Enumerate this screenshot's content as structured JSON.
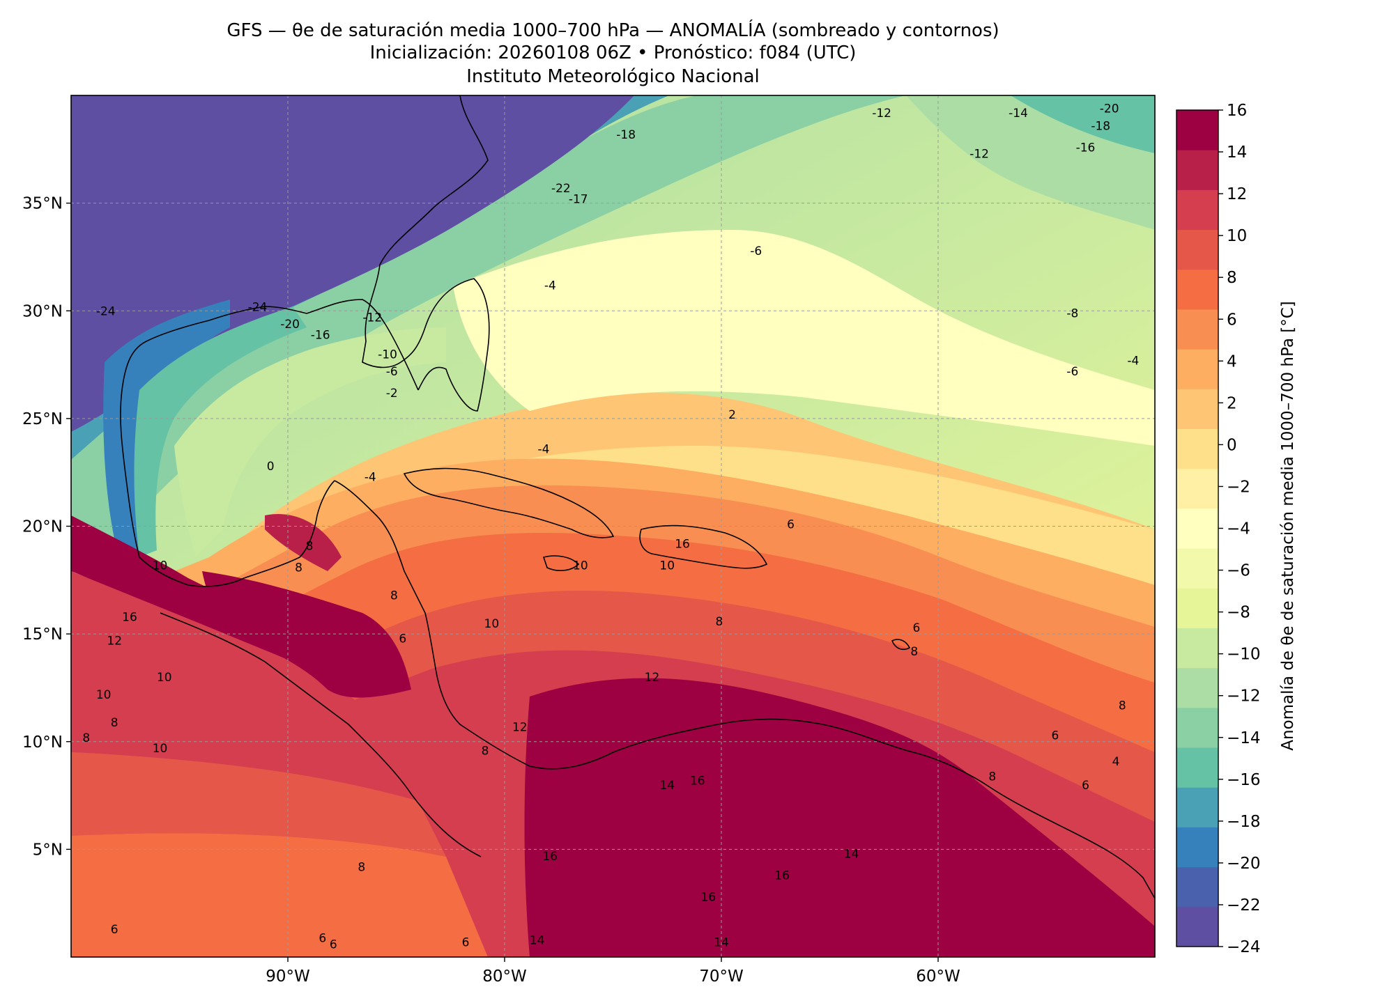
{
  "title": {
    "line1": "GFS — θe de saturación media 1000–700 hPa — ANOMALÍA (sombreado y contornos)",
    "line2": "Inicialización: 20260108 06Z   •   Pronóstico: f084 (UTC)",
    "line3": "Instituto Meteorológico Nacional"
  },
  "map": {
    "lon_range": [
      -100,
      -50
    ],
    "lat_range": [
      0,
      40
    ],
    "lon_ticks": [
      {
        "value": -90,
        "label": "90°W"
      },
      {
        "value": -80,
        "label": "80°W"
      },
      {
        "value": -70,
        "label": "70°W"
      },
      {
        "value": -60,
        "label": "60°W"
      }
    ],
    "lat_ticks": [
      {
        "value": 35,
        "label": "35°N"
      },
      {
        "value": 30,
        "label": "30°N"
      },
      {
        "value": 25,
        "label": "25°N"
      },
      {
        "value": 20,
        "label": "20°N"
      },
      {
        "value": 15,
        "label": "15°N"
      },
      {
        "value": 10,
        "label": "10°N"
      },
      {
        "value": 5,
        "label": "5°N"
      }
    ],
    "gridlines": true
  },
  "colorbar": {
    "label": "Anomalía de θe de saturación media 1000–700 hPa [°C]",
    "ticks": [
      "16",
      "14",
      "12",
      "10",
      "8",
      "6",
      "4",
      "2",
      "0",
      "−2",
      "−4",
      "−6",
      "−8",
      "−10",
      "−12",
      "−14",
      "−16",
      "−18",
      "−20",
      "−22",
      "−24"
    ],
    "range": [
      -24,
      16
    ],
    "colors": [
      "#5e4fa2",
      "#4a62ad",
      "#3680bb",
      "#4aa0b4",
      "#66c2a5",
      "#8ad0a4",
      "#abdda4",
      "#c7e9a0",
      "#e6f598",
      "#f3f9aa",
      "#ffffbf",
      "#fff0a6",
      "#fee08b",
      "#fdc574",
      "#fdae61",
      "#f98e52",
      "#f46d43",
      "#e55749",
      "#d53e4f",
      "#b8204a",
      "#9e0142"
    ]
  },
  "contour_labels": [
    {
      "text": "-12",
      "lon": -62.6,
      "lat": 39.0
    },
    {
      "text": "-14",
      "lon": -56.3,
      "lat": 39.0
    },
    {
      "text": "-20",
      "lon": -52.1,
      "lat": 39.2
    },
    {
      "text": "-18",
      "lon": -52.5,
      "lat": 38.4
    },
    {
      "text": "-16",
      "lon": -53.2,
      "lat": 37.4
    },
    {
      "text": "-12",
      "lon": -58.1,
      "lat": 37.1
    },
    {
      "text": "-18",
      "lon": -74.4,
      "lat": 38.0
    },
    {
      "text": "-22",
      "lon": -77.4,
      "lat": 35.5
    },
    {
      "text": "-17",
      "lon": -76.6,
      "lat": 35.0
    },
    {
      "text": "-6",
      "lon": -68.4,
      "lat": 32.6
    },
    {
      "text": "-4",
      "lon": -77.9,
      "lat": 31.0
    },
    {
      "text": "-8",
      "lon": -53.8,
      "lat": 29.7
    },
    {
      "text": "-4",
      "lon": -51.0,
      "lat": 27.5
    },
    {
      "text": "-6",
      "lon": -53.8,
      "lat": 27.0
    },
    {
      "text": "-24",
      "lon": -98.4,
      "lat": 29.8
    },
    {
      "text": "-24",
      "lon": -91.4,
      "lat": 30.0
    },
    {
      "text": "-20",
      "lon": -89.9,
      "lat": 29.2
    },
    {
      "text": "-16",
      "lon": -88.5,
      "lat": 28.7
    },
    {
      "text": "-12",
      "lon": -86.1,
      "lat": 29.5
    },
    {
      "text": "-10",
      "lon": -85.4,
      "lat": 27.8
    },
    {
      "text": "-6",
      "lon": -85.2,
      "lat": 27.0
    },
    {
      "text": "-2",
      "lon": -85.2,
      "lat": 26.0
    },
    {
      "text": "2",
      "lon": -69.5,
      "lat": 25.0
    },
    {
      "text": "0",
      "lon": -90.8,
      "lat": 22.6
    },
    {
      "text": "-4",
      "lon": -78.2,
      "lat": 23.4
    },
    {
      "text": "-4",
      "lon": -86.2,
      "lat": 22.1
    },
    {
      "text": "6",
      "lon": -66.8,
      "lat": 19.9
    },
    {
      "text": "10",
      "lon": -95.9,
      "lat": 18.0
    },
    {
      "text": "8",
      "lon": -89.5,
      "lat": 17.9
    },
    {
      "text": "8",
      "lon": -89.0,
      "lat": 18.9
    },
    {
      "text": "16",
      "lon": -71.8,
      "lat": 19.0
    },
    {
      "text": "10",
      "lon": -72.5,
      "lat": 18.0
    },
    {
      "text": "10",
      "lon": -76.5,
      "lat": 18.0
    },
    {
      "text": "16",
      "lon": -97.3,
      "lat": 15.6
    },
    {
      "text": "12",
      "lon": -98.0,
      "lat": 14.5
    },
    {
      "text": "10",
      "lon": -98.5,
      "lat": 12.0
    },
    {
      "text": "10",
      "lon": -95.7,
      "lat": 12.8
    },
    {
      "text": "8",
      "lon": -98.0,
      "lat": 10.7
    },
    {
      "text": "8",
      "lon": -99.3,
      "lat": 10.0
    },
    {
      "text": "10",
      "lon": -95.9,
      "lat": 9.5
    },
    {
      "text": "8",
      "lon": -85.1,
      "lat": 16.6
    },
    {
      "text": "6",
      "lon": -84.7,
      "lat": 14.6
    },
    {
      "text": "10",
      "lon": -80.6,
      "lat": 15.3
    },
    {
      "text": "8",
      "lon": -70.1,
      "lat": 15.4
    },
    {
      "text": "6",
      "lon": -61.0,
      "lat": 15.1
    },
    {
      "text": "8",
      "lon": -61.1,
      "lat": 14.0
    },
    {
      "text": "12",
      "lon": -73.2,
      "lat": 12.8
    },
    {
      "text": "12",
      "lon": -79.3,
      "lat": 10.5
    },
    {
      "text": "8",
      "lon": -80.9,
      "lat": 9.4
    },
    {
      "text": "6",
      "lon": -54.6,
      "lat": 10.1
    },
    {
      "text": "8",
      "lon": -57.5,
      "lat": 8.2
    },
    {
      "text": "8",
      "lon": -51.5,
      "lat": 11.5
    },
    {
      "text": "4",
      "lon": -51.8,
      "lat": 8.9
    },
    {
      "text": "6",
      "lon": -53.2,
      "lat": 7.8
    },
    {
      "text": "14",
      "lon": -72.5,
      "lat": 7.8
    },
    {
      "text": "16",
      "lon": -71.1,
      "lat": 8.0
    },
    {
      "text": "16",
      "lon": -77.9,
      "lat": 4.5
    },
    {
      "text": "14",
      "lon": -64.0,
      "lat": 4.6
    },
    {
      "text": "16",
      "lon": -67.2,
      "lat": 3.6
    },
    {
      "text": "16",
      "lon": -70.6,
      "lat": 2.6
    },
    {
      "text": "8",
      "lon": -86.6,
      "lat": 4.0
    },
    {
      "text": "14",
      "lon": -70.0,
      "lat": 0.5
    },
    {
      "text": "14",
      "lon": -78.5,
      "lat": 0.6
    },
    {
      "text": "6",
      "lon": -98.0,
      "lat": 1.1
    },
    {
      "text": "6",
      "lon": -88.4,
      "lat": 0.7
    },
    {
      "text": "6",
      "lon": -81.8,
      "lat": 0.5
    },
    {
      "text": "6",
      "lon": -87.9,
      "lat": 0.4
    }
  ]
}
